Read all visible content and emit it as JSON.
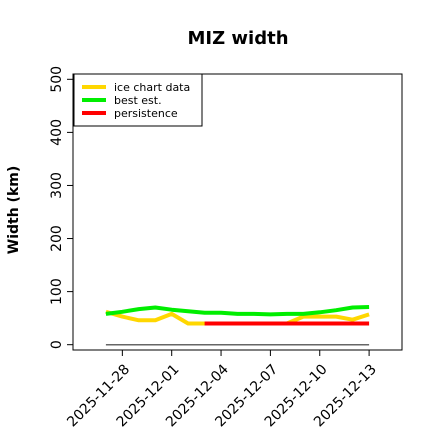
{
  "chart_data": {
    "type": "line",
    "title": "MIZ width",
    "xlabel": "",
    "ylabel": "Width (km)",
    "ylim": [
      -10,
      510
    ],
    "yticks": [
      0,
      100,
      200,
      300,
      400,
      500
    ],
    "xlim": [
      "2025-11-25",
      "2025-12-15"
    ],
    "xticks": [
      "2025-11-28",
      "2025-12-01",
      "2025-12-04",
      "2025-12-07",
      "2025-12-10",
      "2025-12-13"
    ],
    "grid": false,
    "legend_position": "top-left",
    "series": [
      {
        "name": "ice chart data",
        "color": "#FFD700",
        "x": [
          "2025-11-27",
          "2025-11-28",
          "2025-11-29",
          "2025-11-30",
          "2025-12-01",
          "2025-12-02",
          "2025-12-03",
          "2025-12-04",
          "2025-12-05",
          "2025-12-06",
          "2025-12-07",
          "2025-12-08",
          "2025-12-09",
          "2025-12-10",
          "2025-12-11",
          "2025-12-12",
          "2025-12-13"
        ],
        "y": [
          62,
          53,
          46,
          46,
          58,
          40,
          40,
          40,
          40,
          40,
          40,
          40,
          53,
          53,
          53,
          47,
          57
        ]
      },
      {
        "name": "best est.",
        "color": "#00EE00",
        "x": [
          "2025-11-27",
          "2025-11-28",
          "2025-11-29",
          "2025-11-30",
          "2025-12-01",
          "2025-12-02",
          "2025-12-03",
          "2025-12-04",
          "2025-12-05",
          "2025-12-06",
          "2025-12-07",
          "2025-12-08",
          "2025-12-09",
          "2025-12-10",
          "2025-12-11",
          "2025-12-12",
          "2025-12-13"
        ],
        "y": [
          58,
          62,
          67,
          70,
          66,
          63,
          60,
          60,
          58,
          58,
          57,
          58,
          58,
          61,
          65,
          70,
          71
        ]
      },
      {
        "name": "persistence",
        "color": "#FF0000",
        "x": [
          "2025-12-03",
          "2025-12-13"
        ],
        "y": [
          40,
          40
        ]
      },
      {
        "name": "",
        "color": "#666666",
        "x": [
          "2025-11-27",
          "2025-12-13"
        ],
        "y": [
          0,
          0
        ]
      }
    ]
  }
}
